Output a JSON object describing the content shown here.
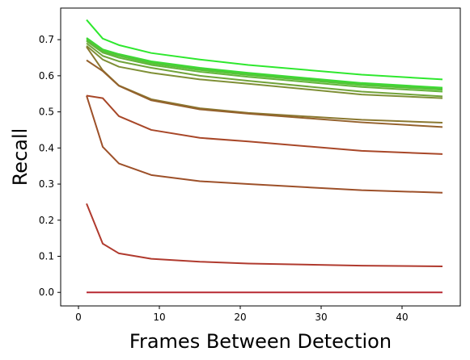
{
  "chart_data": {
    "type": "line",
    "title": "",
    "xlabel": "Frames Between Detection",
    "ylabel": "Recall",
    "xlim": [
      -2.2,
      47.2
    ],
    "ylim": [
      -0.0375,
      0.7875
    ],
    "xticks": [
      0,
      10,
      20,
      30,
      40
    ],
    "yticks": [
      0.0,
      0.1,
      0.2,
      0.3,
      0.4,
      0.5,
      0.6,
      0.7
    ],
    "ytick_labels": [
      "0.0",
      "0.1",
      "0.2",
      "0.3",
      "0.4",
      "0.5",
      "0.6",
      "0.7"
    ],
    "grid": false,
    "x": [
      1,
      3,
      5,
      9,
      15,
      21,
      35,
      45
    ],
    "series": [
      {
        "color": "#2ee82e",
        "values": [
          0.755,
          0.703,
          0.685,
          0.663,
          0.645,
          0.63,
          0.603,
          0.59
        ]
      },
      {
        "color": "#3adc33",
        "values": [
          0.705,
          0.673,
          0.66,
          0.64,
          0.622,
          0.608,
          0.58,
          0.567
        ]
      },
      {
        "color": "#47d036",
        "values": [
          0.702,
          0.67,
          0.658,
          0.637,
          0.619,
          0.605,
          0.577,
          0.564
        ]
      },
      {
        "color": "#55c438",
        "values": [
          0.699,
          0.667,
          0.655,
          0.634,
          0.616,
          0.602,
          0.574,
          0.561
        ]
      },
      {
        "color": "#63b53a",
        "values": [
          0.696,
          0.664,
          0.65,
          0.63,
          0.611,
          0.597,
          0.569,
          0.556
        ]
      },
      {
        "color": "#71a33a",
        "values": [
          0.69,
          0.655,
          0.64,
          0.622,
          0.6,
          0.586,
          0.556,
          0.543
        ]
      },
      {
        "color": "#7f8f36",
        "values": [
          0.683,
          0.645,
          0.625,
          0.608,
          0.59,
          0.578,
          0.548,
          0.538
        ]
      },
      {
        "color": "#8a7830",
        "values": [
          0.68,
          0.615,
          0.573,
          0.535,
          0.51,
          0.497,
          0.478,
          0.47
        ]
      },
      {
        "color": "#94612c",
        "values": [
          0.643,
          0.613,
          0.572,
          0.532,
          0.507,
          0.495,
          0.471,
          0.458
        ]
      },
      {
        "color": "#9d5029",
        "values": [
          0.545,
          0.403,
          0.357,
          0.325,
          0.308,
          0.3,
          0.283,
          0.276
        ]
      },
      {
        "color": "#a84728",
        "values": [
          0.545,
          0.538,
          0.488,
          0.45,
          0.428,
          0.418,
          0.392,
          0.383
        ]
      },
      {
        "color": "#b03a2e",
        "values": [
          0.246,
          0.135,
          0.108,
          0.093,
          0.085,
          0.08,
          0.074,
          0.072
        ]
      },
      {
        "color": "#b72832",
        "values": [
          0.0,
          0.0,
          0.0,
          0.0,
          0.0,
          0.0,
          0.0,
          0.0
        ]
      }
    ]
  }
}
